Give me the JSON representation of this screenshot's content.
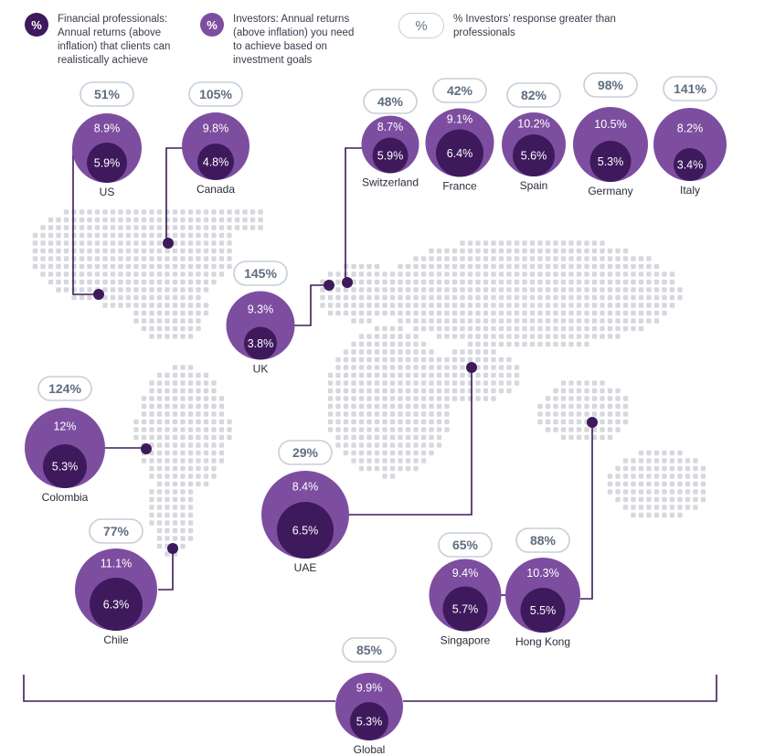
{
  "colors": {
    "professionals": "#3e1a5c",
    "investors": "#7d4ea0",
    "connector": "#3e1a5c",
    "dots": "#d6d8dd",
    "pill_border": "#c9cdd6",
    "pill_text": "#5e6d80"
  },
  "legend": {
    "professionals_symbol": "%",
    "professionals_text": "Financial professionals: Annual returns (above inflation) that clients can realistically achieve",
    "investors_symbol": "%",
    "investors_text": "Investors: Annual returns (above inflation) you need to achieve based on investment goals",
    "diff_symbol": "%",
    "diff_text": "% Investors’ response greater than professionals"
  },
  "chart_data": {
    "type": "bubble-map",
    "title": "",
    "series": [
      {
        "name": "Financial professionals: Annual returns (above inflation) that clients can realistically achieve",
        "key": "professionals"
      },
      {
        "name": "Investors: Annual returns (above inflation) you need to achieve based on investment goals",
        "key": "investors"
      },
      {
        "name": "% Investors’ response greater than professionals",
        "key": "diff"
      }
    ],
    "countries": [
      {
        "name": "US",
        "investors": "8.9%",
        "professionals": "5.9%",
        "diff": "51%"
      },
      {
        "name": "Canada",
        "investors": "9.8%",
        "professionals": "4.8%",
        "diff": "105%"
      },
      {
        "name": "Switzerland",
        "investors": "8.7%",
        "professionals": "5.9%",
        "diff": "48%"
      },
      {
        "name": "France",
        "investors": "9.1%",
        "professionals": "6.4%",
        "diff": "42%"
      },
      {
        "name": "Spain",
        "investors": "10.2%",
        "professionals": "5.6%",
        "diff": "82%"
      },
      {
        "name": "Germany",
        "investors": "10.5%",
        "professionals": "5.3%",
        "diff": "98%"
      },
      {
        "name": "Italy",
        "investors": "8.2%",
        "professionals": "3.4%",
        "diff": "141%"
      },
      {
        "name": "UK",
        "investors": "9.3%",
        "professionals": "3.8%",
        "diff": "145%"
      },
      {
        "name": "Colombia",
        "investors": "12%",
        "professionals": "5.3%",
        "diff": "124%"
      },
      {
        "name": "UAE",
        "investors": "8.4%",
        "professionals": "6.5%",
        "diff": "29%"
      },
      {
        "name": "Chile",
        "investors": "11.1%",
        "professionals": "6.3%",
        "diff": "77%"
      },
      {
        "name": "Singapore",
        "investors": "9.4%",
        "professionals": "5.7%",
        "diff": "65%"
      },
      {
        "name": "Hong Kong",
        "investors": "10.3%",
        "professionals": "5.5%",
        "diff": "88%"
      },
      {
        "name": "Global",
        "investors": "9.9%",
        "professionals": "5.3%",
        "diff": "85%"
      }
    ]
  }
}
